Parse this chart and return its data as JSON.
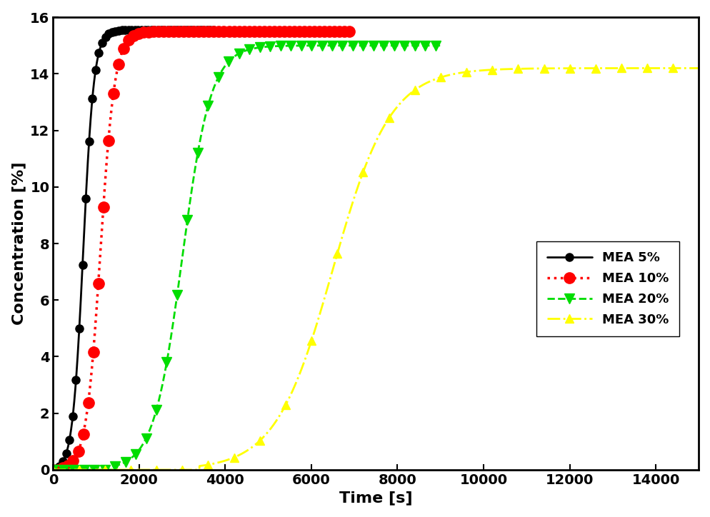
{
  "xlabel": "Time [s]",
  "ylabel": "Concentration [%]",
  "xlim": [
    0,
    15000
  ],
  "ylim": [
    0,
    16
  ],
  "xticks": [
    0,
    2000,
    4000,
    6000,
    8000,
    10000,
    12000,
    14000
  ],
  "yticks": [
    0,
    2,
    4,
    6,
    8,
    10,
    12,
    14,
    16
  ],
  "series": [
    {
      "label": "MEA 5%",
      "color": "#000000",
      "linestyle": "-",
      "marker": "o",
      "markersize": 8,
      "markevery_pts": 60,
      "linewidth": 2.0,
      "x_onset": 50,
      "x_end": 3800,
      "y_plateau": 15.55,
      "k": 0.008,
      "x_inflect": 700
    },
    {
      "label": "MEA 10%",
      "color": "#ff0000",
      "linestyle": ":",
      "marker": "o",
      "markersize": 11,
      "markevery_pts": 50,
      "linewidth": 2.5,
      "x_onset": 150,
      "x_end": 7000,
      "y_plateau": 15.5,
      "k": 0.006,
      "x_inflect": 1100
    },
    {
      "label": "MEA 20%",
      "color": "#00dd00",
      "linestyle": "--",
      "marker": "v",
      "markersize": 10,
      "markevery_pts": 80,
      "linewidth": 2.0,
      "x_onset": 1400,
      "x_end": 9000,
      "y_plateau": 15.0,
      "k": 0.003,
      "x_inflect": 3000
    },
    {
      "label": "MEA 30%",
      "color": "#ffff00",
      "linestyle": "-.",
      "marker": "^",
      "markersize": 8,
      "markevery_pts": 120,
      "linewidth": 2.0,
      "x_onset": 3400,
      "x_end": 15000,
      "y_plateau": 14.2,
      "k": 0.0015,
      "x_inflect": 6500
    }
  ],
  "background_color": "white",
  "fontsize_labels": 16,
  "fontsize_ticks": 14,
  "fontsize_legend": 13
}
